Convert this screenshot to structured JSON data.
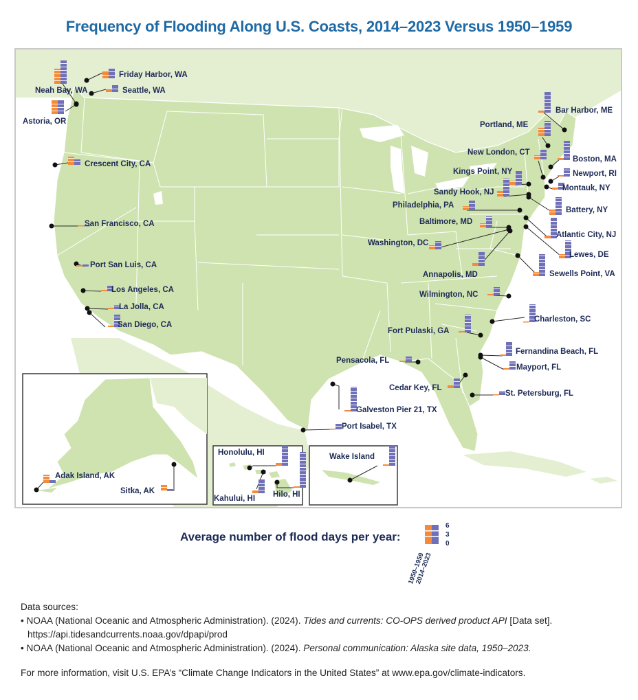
{
  "title": "Frequency of Flooding Along U.S. Coasts, 2014–2023 Versus 1950–1959",
  "legend": {
    "label": "Average number of flood days per year:",
    "ticks": [
      "6",
      "3",
      "0"
    ],
    "period_old": "1950–1959",
    "period_new": "2014–2023",
    "color_old": "#f58a3a",
    "color_new": "#6f70b8"
  },
  "colors": {
    "land": "#cfe3b0",
    "land_light": "#e4efd2",
    "water": "#ffffff",
    "border": "#ffffff",
    "leader": "#2a2a2a"
  },
  "stations": [
    {
      "name": "Neah Bay, WA"
    },
    {
      "name": "Friday Harbor, WA"
    },
    {
      "name": "Seattle, WA"
    },
    {
      "name": "Astoria, OR"
    },
    {
      "name": "Crescent City, CA"
    },
    {
      "name": "San Francisco, CA"
    },
    {
      "name": "Port San Luis, CA"
    },
    {
      "name": "Los Angeles, CA"
    },
    {
      "name": "La Jolla, CA"
    },
    {
      "name": "San Diego, CA"
    },
    {
      "name": "Bar Harbor, ME"
    },
    {
      "name": "Portland, ME"
    },
    {
      "name": "Boston, MA"
    },
    {
      "name": "New London, CT"
    },
    {
      "name": "Newport, RI"
    },
    {
      "name": "Kings Point, NY"
    },
    {
      "name": "Montauk, NY"
    },
    {
      "name": "Sandy Hook, NJ"
    },
    {
      "name": "Battery, NY"
    },
    {
      "name": "Philadelphia, PA"
    },
    {
      "name": "Baltimore, MD"
    },
    {
      "name": "Atlantic City, NJ"
    },
    {
      "name": "Washington, DC"
    },
    {
      "name": "Lewes, DE"
    },
    {
      "name": "Annapolis, MD"
    },
    {
      "name": "Sewells Point, VA"
    },
    {
      "name": "Wilmington, NC"
    },
    {
      "name": "Charleston, SC"
    },
    {
      "name": "Fort Pulaski, GA"
    },
    {
      "name": "Fernandina Beach, FL"
    },
    {
      "name": "Mayport, FL"
    },
    {
      "name": "Pensacola, FL"
    },
    {
      "name": "Cedar Key, FL"
    },
    {
      "name": "St. Petersburg, FL"
    },
    {
      "name": "Galveston Pier 21, TX"
    },
    {
      "name": "Port Isabel, TX"
    },
    {
      "name": "Adak Island, AK"
    },
    {
      "name": "Sitka, AK"
    },
    {
      "name": "Honolulu, HI"
    },
    {
      "name": "Kahului, HI"
    },
    {
      "name": "Hilo, HI"
    },
    {
      "name": "Wake Island"
    }
  ],
  "sources": {
    "heading": "Data sources:",
    "items": [
      {
        "bullet": "•",
        "text_pre": "NOAA (National Oceanic and Atmospheric Administration). (2024). ",
        "text_italic": "Tides and currents: CO-OPS derived product API",
        "text_post": " [Data set]. https://api.tidesandcurrents.noaa.gov/dpapi/prod"
      },
      {
        "bullet": "•",
        "text_pre": "NOAA (National Oceanic and Atmospheric Administration). (2024). ",
        "text_italic": "Personal communication: Alaska site data, 1950–2023.",
        "text_post": ""
      }
    ],
    "more_info": "For more information, visit U.S. EPA’s “Climate Change Indicators in the United States” at www.epa.gov/climate-indicators."
  }
}
